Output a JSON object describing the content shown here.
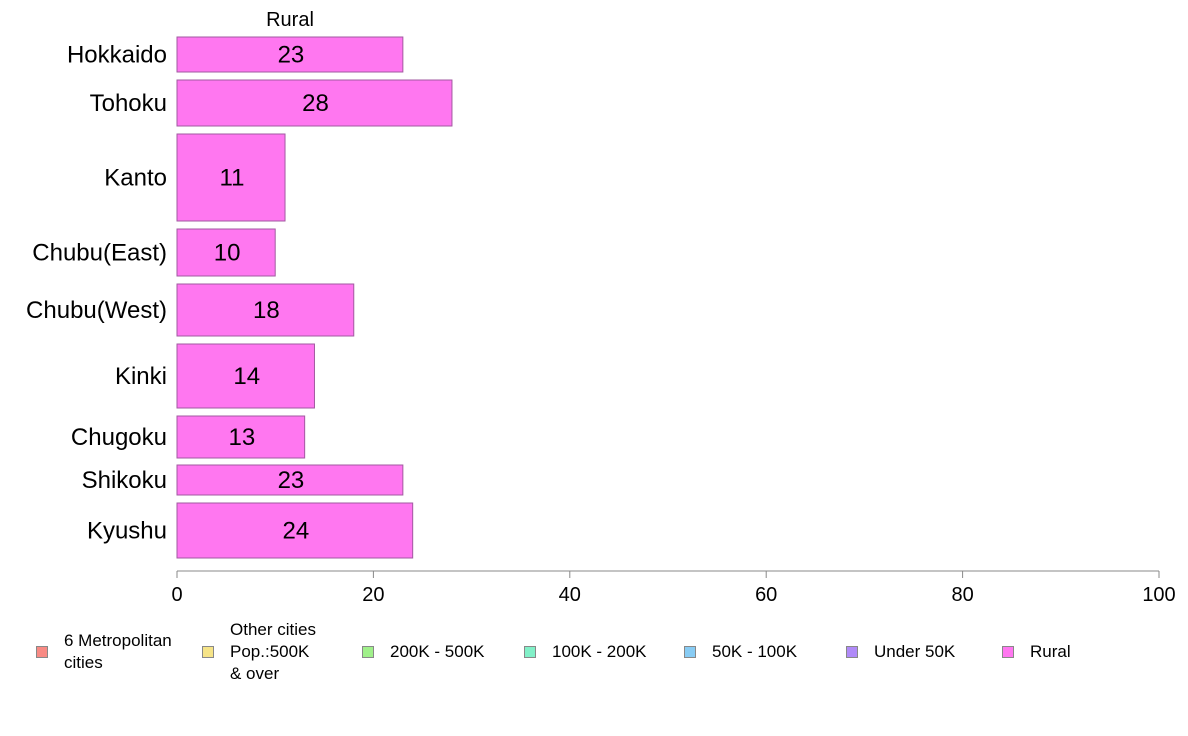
{
  "chart_data": {
    "type": "bar",
    "orientation": "horizontal",
    "title": "Rural",
    "categories": [
      "Hokkaido",
      "Tohoku",
      "Kanto",
      "Chubu(East)",
      "Chubu(West)",
      "Kinki",
      "Chugoku",
      "Shikoku",
      "Kyushu"
    ],
    "values": [
      23,
      28,
      11,
      10,
      18,
      14,
      13,
      23,
      24
    ],
    "data_labels": [
      "23",
      "28",
      "11",
      "10",
      "18",
      "14",
      "13",
      "23",
      "24"
    ],
    "xlim": [
      0,
      100
    ],
    "xticks": [
      "0",
      "20",
      "40",
      "60",
      "80",
      "100"
    ],
    "grid": false,
    "bar_color": "#ff77f0",
    "bar_edge_color": "#a25aa0",
    "legend_position": "bottom",
    "legend": [
      {
        "label": "6 Metropolitan\n cities",
        "color": "#f88a84"
      },
      {
        "label": "Other cities\nPop.:500K\n & over",
        "color": "#f6e488"
      },
      {
        "label": "200K - 500K",
        "color": "#a0f08a"
      },
      {
        "label": "100K - 200K",
        "color": "#82f0c8"
      },
      {
        "label": "50K - 100K",
        "color": "#88ccf4"
      },
      {
        "label": "Under 50K",
        "color": "#b08af8"
      },
      {
        "label": "Rural",
        "color": "#ff77f0"
      }
    ]
  }
}
